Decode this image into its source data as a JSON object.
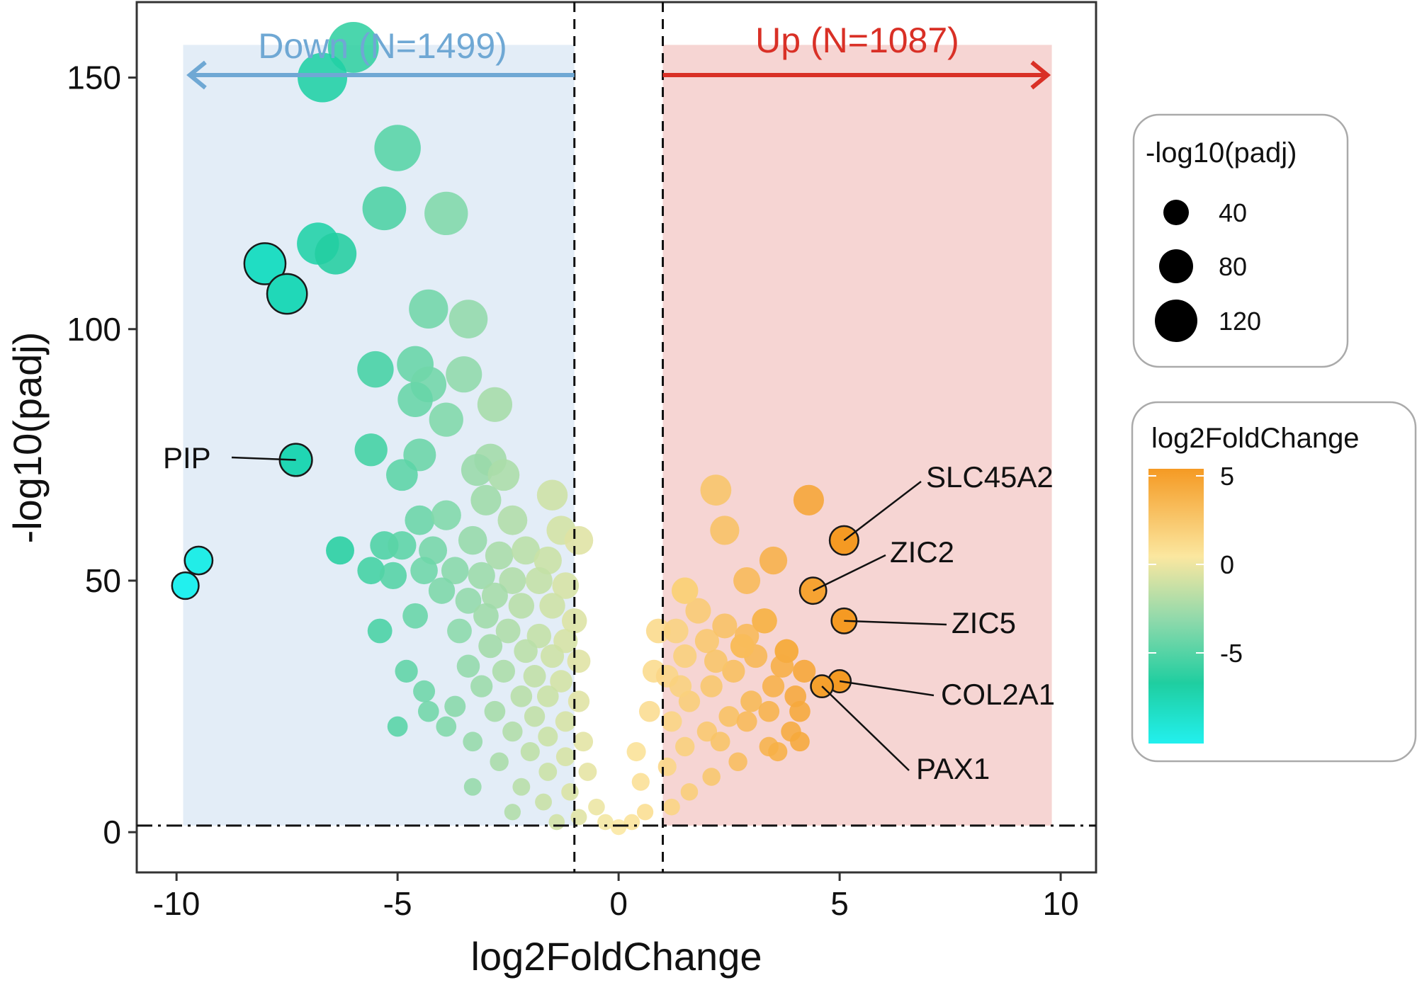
{
  "chart_data": {
    "type": "scatter",
    "xlabel": "log2FoldChange",
    "ylabel": "-log10(padj)",
    "xlim": [
      -10.9,
      10.8
    ],
    "ylim": [
      -8,
      165
    ],
    "x_ticks": [
      -10,
      -5,
      0,
      5,
      10
    ],
    "x_tick_labels": [
      "-10",
      "-5",
      "0",
      "5",
      "10"
    ],
    "y_ticks": [
      0,
      50,
      100,
      150
    ],
    "y_tick_labels": [
      "0",
      "50",
      "100",
      "150"
    ],
    "grid": false,
    "fc_thresholds": [
      -1,
      1
    ],
    "padj_threshold": 1.3,
    "groups": [
      {
        "name": "Down",
        "label": "Down (N=1499)",
        "color": "#6fa8d4",
        "shade": "#e3edf7"
      },
      {
        "name": "Up",
        "label": "Up (N=1087)",
        "color": "#d93026",
        "shade": "#f6d5d3"
      }
    ],
    "color_legend": {
      "title": "log2FoldChange",
      "ticks": [
        "5",
        "0",
        "-5"
      ],
      "colors": [
        "#f59a23",
        "#fbe7a0",
        "#8fd9ab",
        "#1fcea0",
        "#22f0ee"
      ]
    },
    "size_legend": {
      "title": "-log10(padj)",
      "values": [
        "40",
        "80",
        "120"
      ]
    },
    "labeled_points": [
      {
        "gene": "PIP",
        "x": -7.3,
        "y": 74
      },
      {
        "gene": "SLC45A2",
        "x": 5.1,
        "y": 58
      },
      {
        "gene": "ZIC2",
        "x": 4.4,
        "y": 48
      },
      {
        "gene": "ZIC5",
        "x": 5.1,
        "y": 42
      },
      {
        "gene": "COL2A1",
        "x": 5.0,
        "y": 30
      },
      {
        "gene": "PAX1",
        "x": 4.6,
        "y": 29
      }
    ],
    "points": [
      {
        "x": -6.0,
        "y": 156
      },
      {
        "x": -6.7,
        "y": 150
      },
      {
        "x": -5.0,
        "y": 136
      },
      {
        "x": -5.3,
        "y": 124
      },
      {
        "x": -3.9,
        "y": 123
      },
      {
        "x": -6.8,
        "y": 117
      },
      {
        "x": -6.4,
        "y": 115
      },
      {
        "x": -8.0,
        "y": 113
      },
      {
        "x": -7.5,
        "y": 107
      },
      {
        "x": -4.3,
        "y": 104
      },
      {
        "x": -3.4,
        "y": 102
      },
      {
        "x": -4.6,
        "y": 93
      },
      {
        "x": -5.5,
        "y": 92
      },
      {
        "x": -3.5,
        "y": 91
      },
      {
        "x": -4.3,
        "y": 89
      },
      {
        "x": -4.6,
        "y": 86
      },
      {
        "x": -2.8,
        "y": 85
      },
      {
        "x": -3.9,
        "y": 82
      },
      {
        "x": -5.6,
        "y": 76
      },
      {
        "x": -4.5,
        "y": 75
      },
      {
        "x": -7.3,
        "y": 74
      },
      {
        "x": -2.9,
        "y": 74
      },
      {
        "x": -3.2,
        "y": 72
      },
      {
        "x": -4.9,
        "y": 71
      },
      {
        "x": -2.6,
        "y": 71
      },
      {
        "x": -1.5,
        "y": 67
      },
      {
        "x": -3.0,
        "y": 66
      },
      {
        "x": -4.5,
        "y": 62
      },
      {
        "x": -3.9,
        "y": 63
      },
      {
        "x": -2.4,
        "y": 62
      },
      {
        "x": -1.3,
        "y": 60
      },
      {
        "x": -0.9,
        "y": 58
      },
      {
        "x": -5.3,
        "y": 57
      },
      {
        "x": -4.9,
        "y": 57
      },
      {
        "x": -4.2,
        "y": 56
      },
      {
        "x": -6.3,
        "y": 56
      },
      {
        "x": -3.3,
        "y": 58
      },
      {
        "x": -2.7,
        "y": 55
      },
      {
        "x": -2.1,
        "y": 56
      },
      {
        "x": -1.6,
        "y": 54
      },
      {
        "x": -9.5,
        "y": 54
      },
      {
        "x": -5.6,
        "y": 52
      },
      {
        "x": -5.1,
        "y": 51
      },
      {
        "x": -4.4,
        "y": 52
      },
      {
        "x": -3.7,
        "y": 52
      },
      {
        "x": -3.1,
        "y": 51
      },
      {
        "x": -2.4,
        "y": 50
      },
      {
        "x": -1.8,
        "y": 50
      },
      {
        "x": -1.2,
        "y": 49
      },
      {
        "x": -9.8,
        "y": 49
      },
      {
        "x": -4.0,
        "y": 48
      },
      {
        "x": -3.4,
        "y": 46
      },
      {
        "x": -2.8,
        "y": 47
      },
      {
        "x": -2.2,
        "y": 45
      },
      {
        "x": -1.5,
        "y": 45
      },
      {
        "x": -4.6,
        "y": 43
      },
      {
        "x": -3.0,
        "y": 43
      },
      {
        "x": -1.0,
        "y": 42
      },
      {
        "x": -5.4,
        "y": 40
      },
      {
        "x": -3.6,
        "y": 40
      },
      {
        "x": -2.5,
        "y": 40
      },
      {
        "x": -1.8,
        "y": 39
      },
      {
        "x": -1.2,
        "y": 38
      },
      {
        "x": -2.9,
        "y": 37
      },
      {
        "x": -2.1,
        "y": 36
      },
      {
        "x": -1.5,
        "y": 35
      },
      {
        "x": -0.9,
        "y": 34
      },
      {
        "x": -3.4,
        "y": 33
      },
      {
        "x": -4.8,
        "y": 32
      },
      {
        "x": -2.6,
        "y": 32
      },
      {
        "x": -1.9,
        "y": 31
      },
      {
        "x": -1.3,
        "y": 30
      },
      {
        "x": -3.1,
        "y": 29
      },
      {
        "x": -4.4,
        "y": 28
      },
      {
        "x": -2.2,
        "y": 27
      },
      {
        "x": -1.6,
        "y": 27
      },
      {
        "x": -0.9,
        "y": 26
      },
      {
        "x": -3.7,
        "y": 25
      },
      {
        "x": -2.8,
        "y": 24
      },
      {
        "x": -4.3,
        "y": 24
      },
      {
        "x": -1.9,
        "y": 23
      },
      {
        "x": -1.2,
        "y": 22
      },
      {
        "x": -5.0,
        "y": 21
      },
      {
        "x": -3.9,
        "y": 21
      },
      {
        "x": -2.4,
        "y": 20
      },
      {
        "x": -1.6,
        "y": 19
      },
      {
        "x": -0.8,
        "y": 18
      },
      {
        "x": -3.3,
        "y": 18
      },
      {
        "x": -2.0,
        "y": 16
      },
      {
        "x": -1.2,
        "y": 15
      },
      {
        "x": -2.7,
        "y": 14
      },
      {
        "x": -1.6,
        "y": 12
      },
      {
        "x": -0.7,
        "y": 12
      },
      {
        "x": -3.3,
        "y": 9
      },
      {
        "x": -2.2,
        "y": 9
      },
      {
        "x": -1.1,
        "y": 8
      },
      {
        "x": -1.7,
        "y": 6
      },
      {
        "x": -0.5,
        "y": 5
      },
      {
        "x": -2.4,
        "y": 4
      },
      {
        "x": -0.9,
        "y": 3
      },
      {
        "x": -0.3,
        "y": 2
      },
      {
        "x": -1.4,
        "y": 2
      },
      {
        "x": 0.0,
        "y": 1
      },
      {
        "x": 0.3,
        "y": 2
      },
      {
        "x": 0.6,
        "y": 4
      },
      {
        "x": 0.5,
        "y": 10
      },
      {
        "x": 0.4,
        "y": 16
      },
      {
        "x": 0.7,
        "y": 24
      },
      {
        "x": 0.8,
        "y": 32
      },
      {
        "x": 0.9,
        "y": 40
      },
      {
        "x": 1.2,
        "y": 5
      },
      {
        "x": 1.6,
        "y": 8
      },
      {
        "x": 2.1,
        "y": 11
      },
      {
        "x": 2.7,
        "y": 14
      },
      {
        "x": 3.4,
        "y": 17
      },
      {
        "x": 3.9,
        "y": 20
      },
      {
        "x": 4.1,
        "y": 24
      },
      {
        "x": 1.1,
        "y": 13
      },
      {
        "x": 1.5,
        "y": 17
      },
      {
        "x": 2.0,
        "y": 20
      },
      {
        "x": 2.5,
        "y": 23
      },
      {
        "x": 3.0,
        "y": 26
      },
      {
        "x": 3.5,
        "y": 29
      },
      {
        "x": 4.2,
        "y": 32
      },
      {
        "x": 1.2,
        "y": 22
      },
      {
        "x": 1.6,
        "y": 26
      },
      {
        "x": 2.1,
        "y": 29
      },
      {
        "x": 2.6,
        "y": 32
      },
      {
        "x": 3.1,
        "y": 35
      },
      {
        "x": 3.8,
        "y": 36
      },
      {
        "x": 1.1,
        "y": 31
      },
      {
        "x": 1.5,
        "y": 35
      },
      {
        "x": 2.0,
        "y": 38
      },
      {
        "x": 2.4,
        "y": 41
      },
      {
        "x": 2.9,
        "y": 39
      },
      {
        "x": 3.3,
        "y": 42
      },
      {
        "x": 1.3,
        "y": 40
      },
      {
        "x": 1.8,
        "y": 44
      },
      {
        "x": 1.5,
        "y": 48
      },
      {
        "x": 2.8,
        "y": 37
      },
      {
        "x": 3.7,
        "y": 33
      },
      {
        "x": 4.0,
        "y": 27
      },
      {
        "x": 2.3,
        "y": 18
      },
      {
        "x": 2.9,
        "y": 22
      },
      {
        "x": 1.4,
        "y": 29
      },
      {
        "x": 2.2,
        "y": 34
      },
      {
        "x": 3.4,
        "y": 24
      },
      {
        "x": 3.6,
        "y": 16
      },
      {
        "x": 4.1,
        "y": 18
      },
      {
        "x": 2.2,
        "y": 68
      },
      {
        "x": 4.3,
        "y": 66
      },
      {
        "x": 2.4,
        "y": 60
      },
      {
        "x": 3.5,
        "y": 54
      },
      {
        "x": 2.9,
        "y": 50
      },
      {
        "x": 3.3,
        "y": 42
      },
      {
        "x": 2.8,
        "y": 37
      },
      {
        "x": 3.8,
        "y": 36
      },
      {
        "x": 1.5,
        "y": 48
      },
      {
        "x": 4.4,
        "y": 48
      },
      {
        "x": 5.1,
        "y": 58
      },
      {
        "x": 5.1,
        "y": 42
      },
      {
        "x": 5.0,
        "y": 30
      },
      {
        "x": 4.6,
        "y": 29
      }
    ]
  }
}
